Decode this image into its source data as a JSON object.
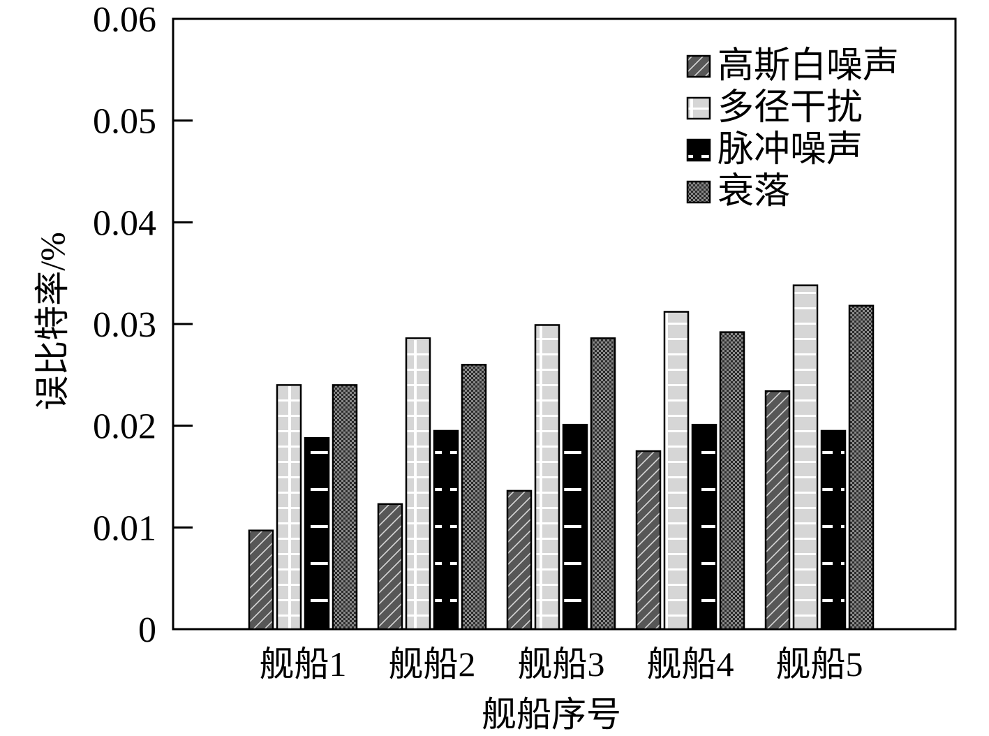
{
  "chart_data": {
    "type": "bar",
    "title": "",
    "xlabel": "舰船序号",
    "ylabel": "误比特率/%",
    "categories": [
      "舰船1",
      "舰船2",
      "舰船3",
      "舰船4",
      "舰船5"
    ],
    "series": [
      {
        "name": "高斯白噪声",
        "pattern": "diagonal",
        "color": "#555555",
        "values": [
          0.0097,
          0.0123,
          0.0136,
          0.0175,
          0.0234
        ]
      },
      {
        "name": "多径干扰",
        "pattern": "grid",
        "color": "#d9d9d9",
        "values": [
          0.024,
          0.0286,
          0.0299,
          0.0312,
          0.0338
        ]
      },
      {
        "name": "脉冲噪声",
        "pattern": "dashes",
        "color": "#000000",
        "values": [
          0.0188,
          0.0195,
          0.0201,
          0.0201,
          0.0195
        ]
      },
      {
        "name": "衰落",
        "pattern": "checker",
        "color": "#333333",
        "values": [
          0.024,
          0.026,
          0.0286,
          0.0292,
          0.0318
        ]
      }
    ],
    "yticks": [
      "0",
      "0.01",
      "0.02",
      "0.03",
      "0.04",
      "0.05",
      "0.06"
    ],
    "ylim": [
      0,
      0.06
    ],
    "grid": false,
    "legend_position": "top-right"
  }
}
